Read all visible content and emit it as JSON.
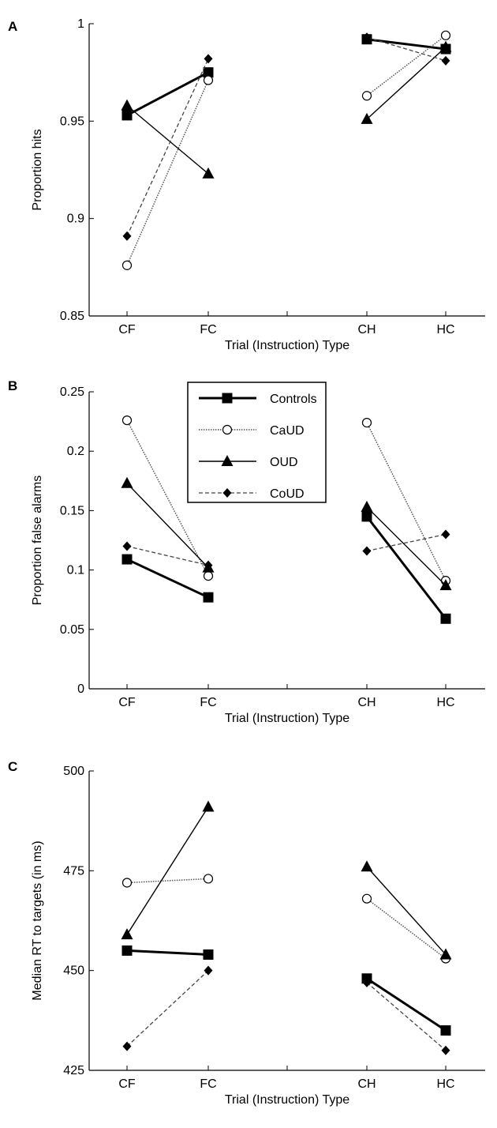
{
  "chart_data": [
    {
      "panel": "A",
      "type": "line",
      "categories": [
        "CF",
        "FC",
        "CH",
        "HC"
      ],
      "xlabel": "Trial (Instruction) Type",
      "ylabel": "Proportion hits",
      "ylim": [
        0.85,
        1.0
      ],
      "yticks": [
        "0.85",
        "0.9",
        "0.95",
        "1"
      ],
      "legend": false,
      "series": [
        {
          "name": "Controls",
          "values": [
            0.953,
            0.975,
            0.992,
            0.987
          ]
        },
        {
          "name": "CaUD",
          "values": [
            0.876,
            0.971,
            0.963,
            0.994
          ]
        },
        {
          "name": "OUD",
          "values": [
            0.958,
            0.923,
            0.951,
            0.988
          ]
        },
        {
          "name": "CoUD",
          "values": [
            0.891,
            0.982,
            0.993,
            0.981
          ]
        }
      ]
    },
    {
      "panel": "B",
      "type": "line",
      "categories": [
        "CF",
        "FC",
        "CH",
        "HC"
      ],
      "xlabel": "Trial (Instruction) Type",
      "ylabel": "Proportion false alarms",
      "ylim": [
        0,
        0.25
      ],
      "yticks": [
        "0",
        "0.05",
        "0.1",
        "0.15",
        "0.2",
        "0.25"
      ],
      "legend": true,
      "legend_position": "top-center",
      "series": [
        {
          "name": "Controls",
          "values": [
            0.109,
            0.077,
            0.145,
            0.059
          ]
        },
        {
          "name": "CaUD",
          "values": [
            0.226,
            0.095,
            0.224,
            0.091
          ]
        },
        {
          "name": "OUD",
          "values": [
            0.173,
            0.102,
            0.153,
            0.087
          ]
        },
        {
          "name": "CoUD",
          "values": [
            0.12,
            0.104,
            0.116,
            0.13
          ]
        }
      ]
    },
    {
      "panel": "C",
      "type": "line",
      "categories": [
        "CF",
        "FC",
        "CH",
        "HC"
      ],
      "xlabel": "Trial (Instruction) Type",
      "ylabel": "Median RT to targets (in ms)",
      "ylim": [
        425,
        500
      ],
      "yticks": [
        "425",
        "450",
        "475",
        "500"
      ],
      "legend": false,
      "series": [
        {
          "name": "Controls",
          "values": [
            455,
            454,
            448,
            435
          ]
        },
        {
          "name": "CaUD",
          "values": [
            472,
            473,
            468,
            453
          ]
        },
        {
          "name": "OUD",
          "values": [
            459,
            491,
            476,
            454
          ]
        },
        {
          "name": "CoUD",
          "values": [
            431,
            450,
            447,
            430
          ]
        }
      ]
    }
  ]
}
